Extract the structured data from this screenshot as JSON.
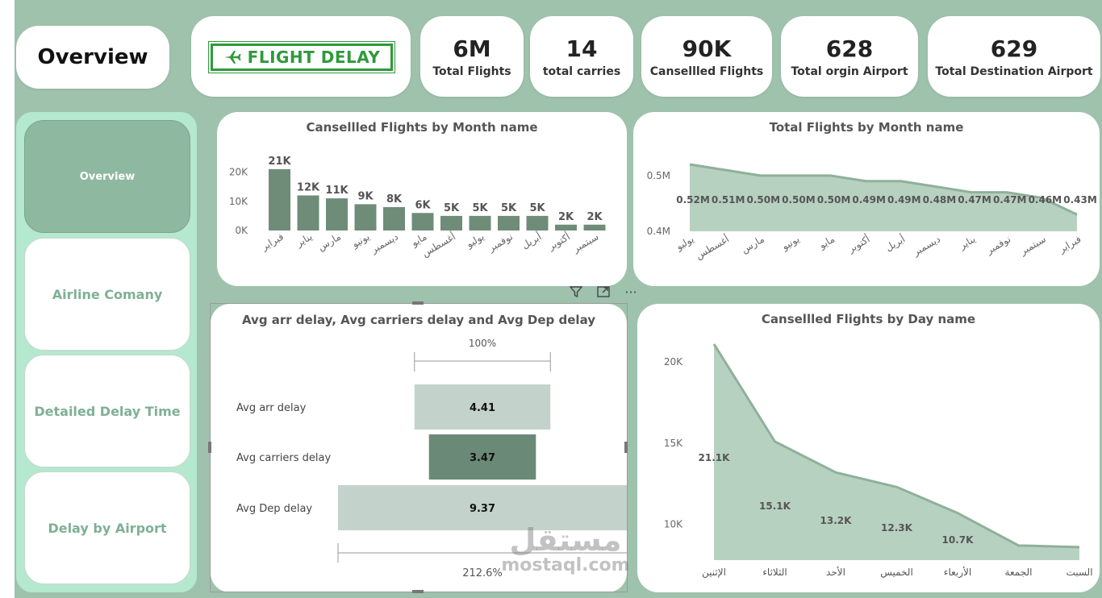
{
  "header": {
    "page_title": "Overview",
    "logo_text": "FLIGHT DELAY"
  },
  "kpis": [
    {
      "value": "6M",
      "label": "Total Flights"
    },
    {
      "value": "14",
      "label": "total carries"
    },
    {
      "value": "90K",
      "label": "Cansellled Flights"
    },
    {
      "value": "628",
      "label": "Total orgin Airport"
    },
    {
      "value": "629",
      "label": "Total Destination Airport"
    }
  ],
  "nav": [
    {
      "label": "Overview",
      "active": true
    },
    {
      "label": "Airline Comany",
      "active": false
    },
    {
      "label": "Detailed Delay Time",
      "active": false
    },
    {
      "label": "Delay by Airport",
      "active": false
    }
  ],
  "colors": {
    "background": "#9fc2ac",
    "bar": "#6f8c79",
    "area": "#b7d1c0",
    "area_line": "#8fb09a",
    "bar_light": "#c3d3cb",
    "bar_dark": "#6b8977"
  },
  "toolbar": {
    "filter_icon": "filter-icon",
    "focus_icon": "focus-mode-icon",
    "more_icon": "more-options-icon",
    "more_label": "···"
  },
  "watermark": {
    "arabic": "مستقل",
    "latin": "mostaql.com"
  },
  "chart_data": [
    {
      "id": "cancelled_by_month",
      "type": "bar",
      "title": "Cansellled Flights by Month name",
      "categories": [
        "فبراير",
        "يناير",
        "مارس",
        "يونيو",
        "ديسمبر",
        "مايو",
        "أغسطس",
        "يوليو",
        "نوفمبر",
        "أبريل",
        "أكتوبر",
        "سبتمبر"
      ],
      "values": [
        21000,
        12000,
        11000,
        9000,
        8000,
        6000,
        5000,
        5000,
        5000,
        5000,
        2000,
        2000
      ],
      "data_labels": [
        "21K",
        "12K",
        "11K",
        "9K",
        "8K",
        "6K",
        "5K",
        "5K",
        "5K",
        "5K",
        "2K",
        "2K"
      ],
      "yticks": [
        "0K",
        "10K",
        "20K"
      ],
      "ytick_values": [
        0,
        10000,
        20000
      ],
      "ylim": [
        0,
        24000
      ]
    },
    {
      "id": "total_by_month",
      "type": "area",
      "title": "Total Flights by Month name",
      "categories": [
        "يوليو",
        "أغسطس",
        "مارس",
        "يونيو",
        "مايو",
        "أكتوبر",
        "أبريل",
        "ديسمبر",
        "يناير",
        "نوفمبر",
        "سبتمبر",
        "فبراير"
      ],
      "values": [
        0.52,
        0.51,
        0.5,
        0.5,
        0.5,
        0.49,
        0.49,
        0.48,
        0.47,
        0.47,
        0.46,
        0.43
      ],
      "data_labels": [
        "0.52M",
        "0.51M",
        "0.50M",
        "0.50M",
        "0.50M",
        "0.49M",
        "0.49M",
        "0.48M",
        "0.47M",
        "0.47M",
        "0.46M",
        "0.43M"
      ],
      "yticks": [
        "0.4M",
        "0.5M"
      ],
      "ytick_values": [
        0.4,
        0.5
      ],
      "ylim": [
        0.4,
        0.52
      ]
    },
    {
      "id": "avg_delays",
      "type": "bar",
      "orientation": "funnel",
      "title": "Avg arr delay, Avg carriers delay and Avg Dep delay",
      "categories": [
        "Avg arr delay",
        "Avg carriers delay",
        "Avg Dep delay"
      ],
      "values": [
        4.41,
        3.47,
        9.37
      ],
      "data_labels": [
        "4.41",
        "3.47",
        "9.37"
      ],
      "top_label": "100%",
      "bottom_label": "212.6%"
    },
    {
      "id": "cancelled_by_day",
      "type": "area",
      "title": "Cansellled Flights by Day name",
      "categories": [
        "الإثنين",
        "الثلاثاء",
        "الأحد",
        "الخميس",
        "الأربعاء",
        "الجمعة",
        "السبت"
      ],
      "values": [
        21.1,
        15.1,
        13.2,
        12.3,
        10.7,
        8.7,
        8.6
      ],
      "data_labels": [
        "21.1K",
        "15.1K",
        "13.2K",
        "12.3K",
        "10.7K",
        "",
        ""
      ],
      "yticks": [
        "10K",
        "15K",
        "20K"
      ],
      "ytick_values": [
        10,
        15,
        20
      ],
      "ylim": [
        7.8,
        20.6
      ]
    }
  ]
}
